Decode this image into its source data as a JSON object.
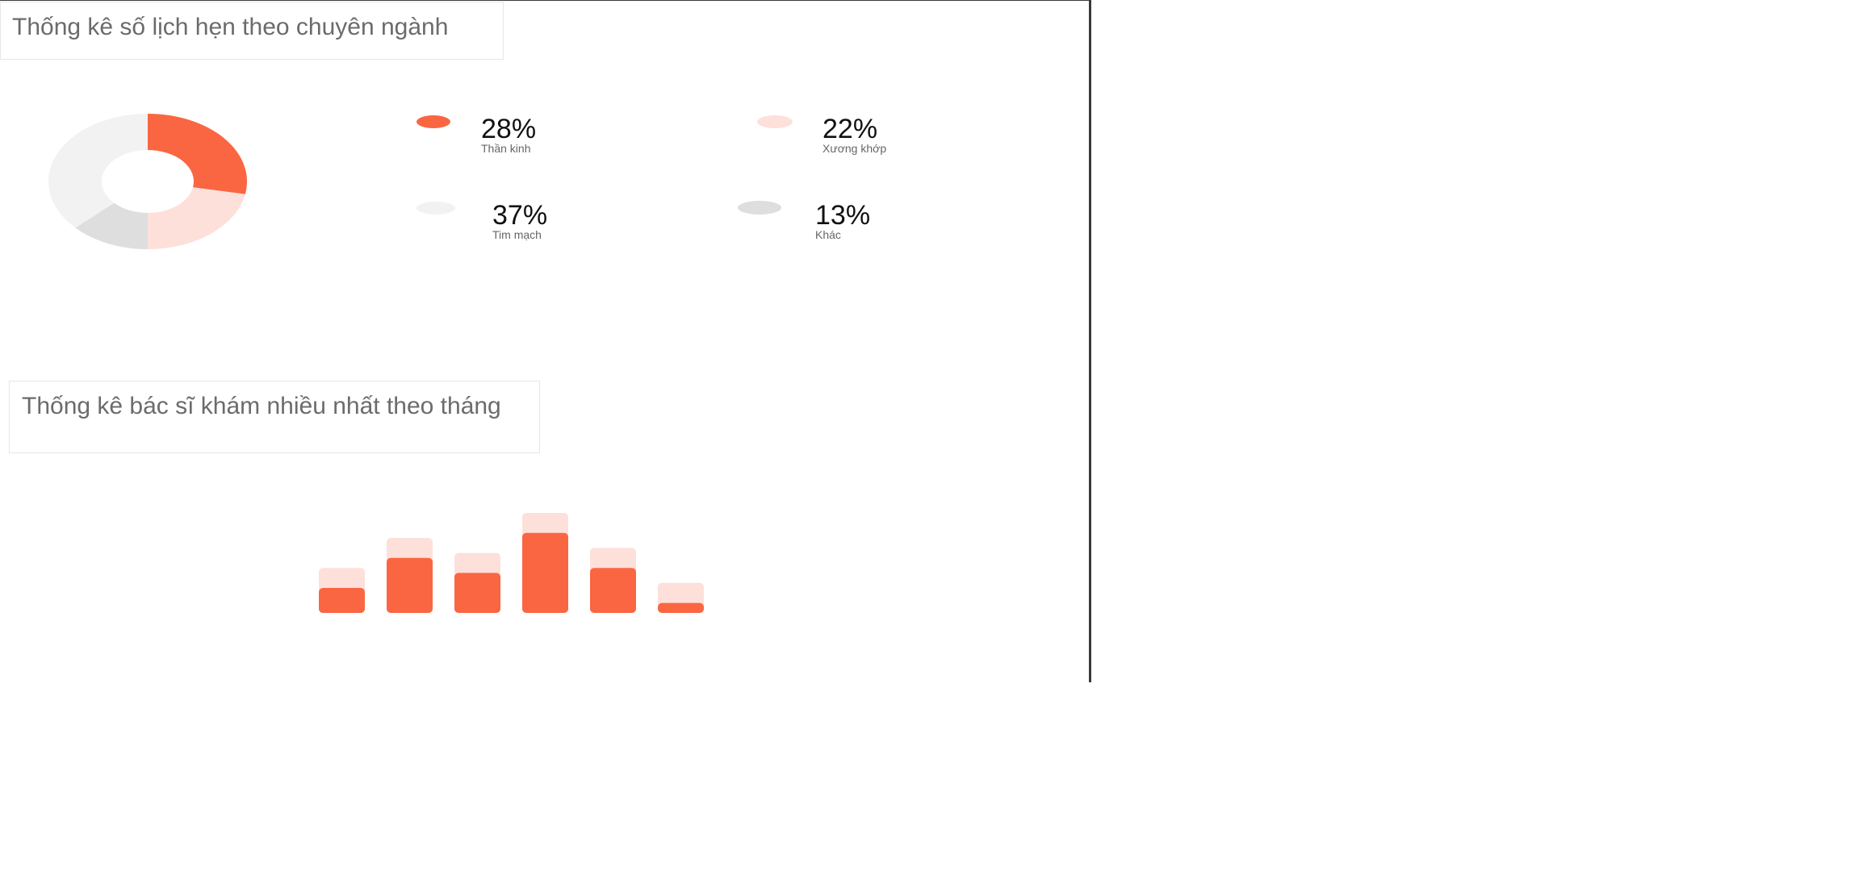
{
  "section1": {
    "title": "Thống kê số lịch hẹn theo chuyên ngành"
  },
  "section2": {
    "title": "Thống kê bác sĩ khám nhiều nhất theo tháng"
  },
  "legend": [
    {
      "percent": "28%",
      "label": "Thần kinh"
    },
    {
      "percent": "22%",
      "label": "Xương khớp"
    },
    {
      "percent": "37%",
      "label": "Tim mạch"
    },
    {
      "percent": "13%",
      "label": "Khác"
    }
  ],
  "chart_data": [
    {
      "type": "pie",
      "title": "Thống kê số lịch hẹn theo chuyên ngành",
      "categories": [
        "Thần kinh",
        "Xương khớp",
        "Khác",
        "Tim mạch"
      ],
      "values": [
        28,
        22,
        13,
        37
      ],
      "colors": [
        "#fa6642",
        "#fde0da",
        "#dedede",
        "#f2f2f2"
      ],
      "donut": true
    },
    {
      "type": "bar",
      "title": "Thống kê bác sĩ khám nhiều nhất theo tháng",
      "categories": [
        "",
        "",
        "",
        "",
        "",
        ""
      ],
      "series": [
        {
          "values": [
            20,
            44,
            32,
            64,
            36,
            8
          ],
          "color": "#fa6642"
        },
        {
          "values": [
            36,
            60,
            48,
            80,
            52,
            24
          ],
          "color": "#fde0da"
        }
      ],
      "ylim": [
        0,
        80
      ],
      "stacked": false,
      "overlapped": true,
      "grid": false
    }
  ]
}
